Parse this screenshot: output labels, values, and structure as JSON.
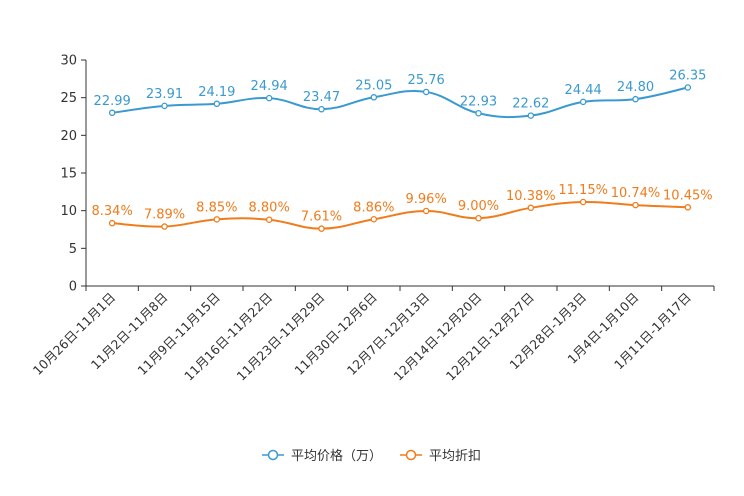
{
  "chart_data": {
    "type": "line",
    "title": "",
    "xlabel": "",
    "ylabel": "",
    "ylim": [
      0,
      30
    ],
    "yticks": [
      0,
      5,
      10,
      15,
      20,
      25,
      30
    ],
    "categories": [
      "10月26日-11月1日",
      "11月2日-11月8日",
      "11月9日-11月15日",
      "11月16日-11月22日",
      "11月23日-11月29日",
      "11月30日-12月6日",
      "12月7日-12月13日",
      "12月14日-12月20日",
      "12月21日-12月27日",
      "12月28日-1月3日",
      "1月4日-1月10日",
      "1月11日-1月17日"
    ],
    "series": [
      {
        "name": "平均价格（万）",
        "color": "#3a9ad0",
        "values": [
          22.99,
          23.91,
          24.19,
          24.94,
          23.47,
          25.05,
          25.76,
          22.93,
          22.62,
          24.44,
          24.8,
          26.35
        ],
        "labels": [
          "22.99",
          "23.91",
          "24.19",
          "24.94",
          "23.47",
          "25.05",
          "25.76",
          "22.93",
          "22.62",
          "24.44",
          "24.80",
          "26.35"
        ]
      },
      {
        "name": "平均折扣",
        "color": "#f07c1c",
        "values": [
          8.34,
          7.89,
          8.85,
          8.8,
          7.61,
          8.86,
          9.96,
          9.0,
          10.38,
          11.15,
          10.74,
          10.45
        ],
        "labels": [
          "8.34%",
          "7.89%",
          "8.85%",
          "8.80%",
          "7.61%",
          "8.86%",
          "9.96%",
          "9.00%",
          "10.38%",
          "11.15%",
          "10.74%",
          "10.45%"
        ]
      }
    ],
    "legend": "bottom-center",
    "grid": false
  }
}
